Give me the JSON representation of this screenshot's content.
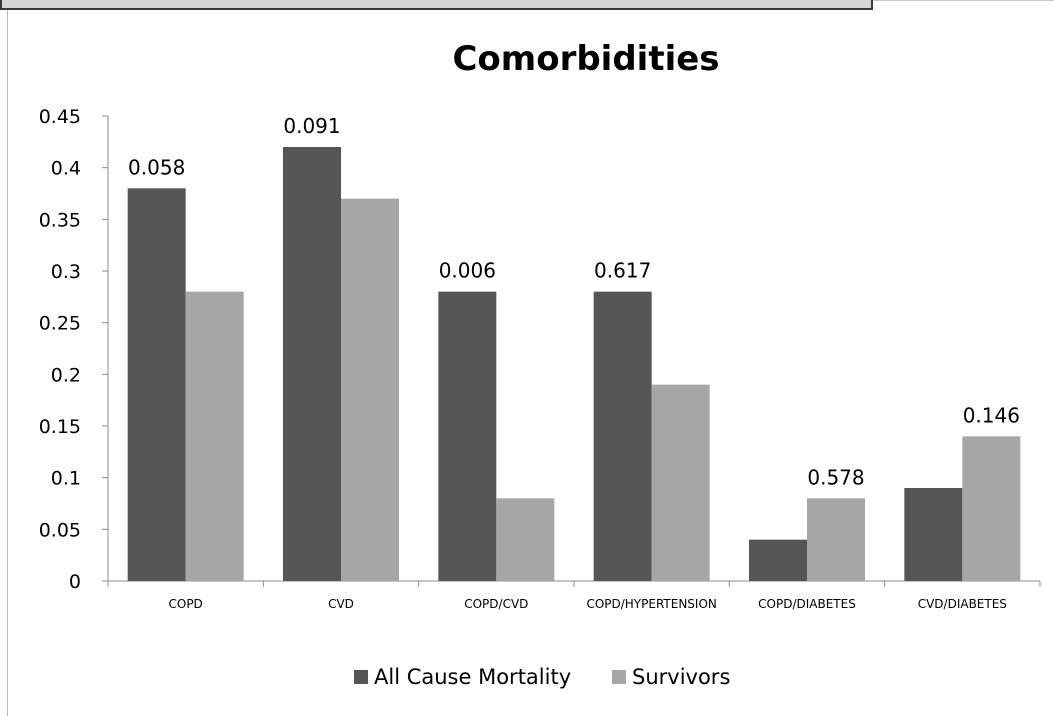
{
  "chart_data": {
    "type": "bar",
    "title": "Comorbidities",
    "xlabel": "",
    "ylabel": "",
    "categories": [
      "COPD",
      "CVD",
      "COPD/CVD",
      "COPD/HYPERTENSION",
      "COPD/DIABETES",
      "CVD/DIABETES"
    ],
    "series": [
      {
        "name": "All Cause Mortality",
        "color": "#555555",
        "values": [
          0.38,
          0.42,
          0.28,
          0.28,
          0.04,
          0.09
        ]
      },
      {
        "name": "Survivors",
        "color": "#a6a6a6",
        "values": [
          0.28,
          0.37,
          0.08,
          0.19,
          0.08,
          0.14
        ]
      }
    ],
    "data_labels": [
      "0.058",
      "0.091",
      "0.006",
      "0.617",
      "0.578",
      "0.146"
    ],
    "y_ticks": [
      "0",
      "0.05",
      "0.1",
      "0.15",
      "0.2",
      "0.25",
      "0.3",
      "0.35",
      "0.4",
      "0.45"
    ],
    "ylim": [
      0,
      0.45
    ],
    "grid": false,
    "legend_position": "bottom"
  }
}
